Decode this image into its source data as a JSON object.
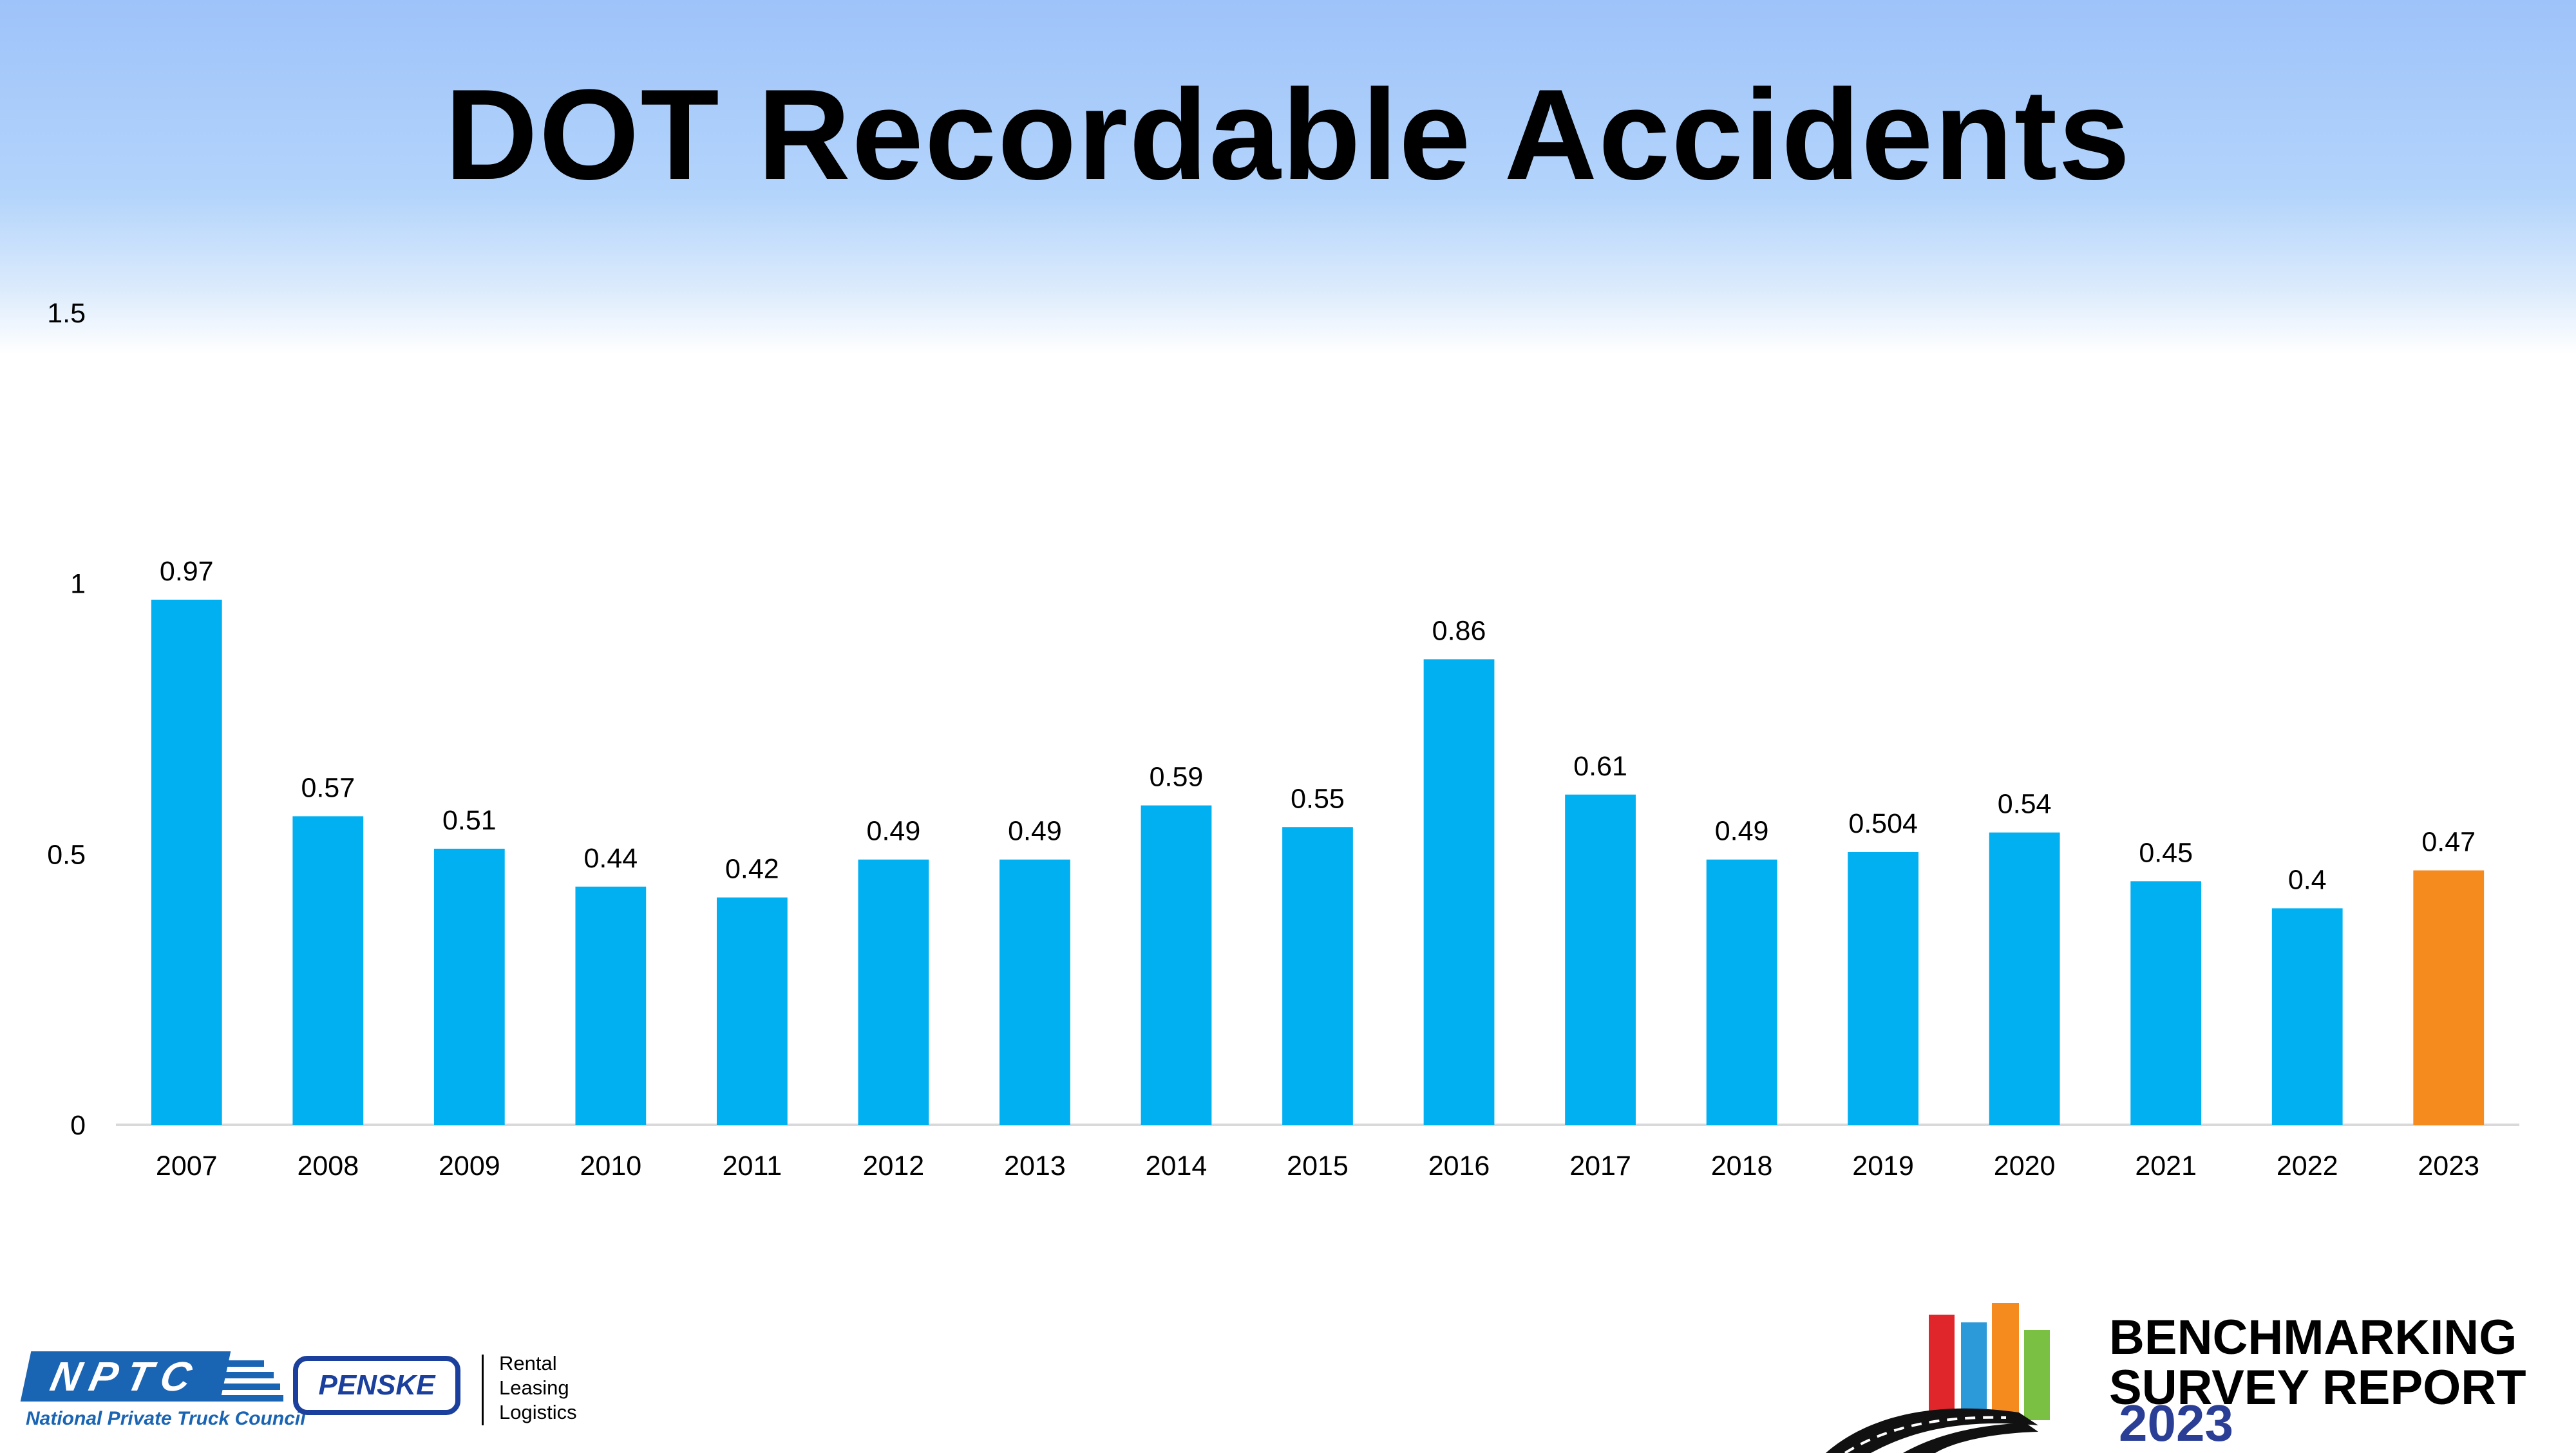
{
  "slide": {
    "title": "DOT Recordable Accidents"
  },
  "colors": {
    "bar_default": "#00b0f0",
    "bar_highlight": "#f58a1f",
    "header_gradient_top": "#9ec3fa"
  },
  "chart_data": {
    "type": "bar",
    "title": "",
    "xlabel": "",
    "ylabel": "",
    "categories": [
      "2007",
      "2008",
      "2009",
      "2010",
      "2011",
      "2012",
      "2013",
      "2014",
      "2015",
      "2016",
      "2017",
      "2018",
      "2019",
      "2020",
      "2021",
      "2022",
      "2023"
    ],
    "values": [
      0.97,
      0.57,
      0.51,
      0.44,
      0.42,
      0.49,
      0.49,
      0.59,
      0.55,
      0.86,
      0.61,
      0.49,
      0.504,
      0.54,
      0.45,
      0.4,
      0.47
    ],
    "data_labels": [
      "0.97",
      "0.57",
      "0.51",
      "0.44",
      "0.42",
      "0.49",
      "0.49",
      "0.59",
      "0.55",
      "0.86",
      "0.61",
      "0.49",
      "0.504",
      "0.54",
      "0.45",
      "0.4",
      "0.47"
    ],
    "highlight_category": "2023",
    "ylim": [
      0,
      1.5
    ],
    "yticks": [
      0,
      0.5,
      1,
      1.5
    ],
    "ytick_labels": [
      "0",
      "0.5",
      "1",
      "1.5"
    ],
    "grid": false,
    "legend": "none"
  },
  "footer": {
    "nptc": {
      "wordmark": "NPTC",
      "caption": "National Private Truck Council"
    },
    "penske": {
      "wordmark": "PENSKE",
      "services": [
        "Rental",
        "Leasing",
        "Logistics"
      ]
    },
    "benchmarking": {
      "line1": "BENCHMARKING",
      "line2": "SURVEY REPORT",
      "year": "2023"
    }
  }
}
